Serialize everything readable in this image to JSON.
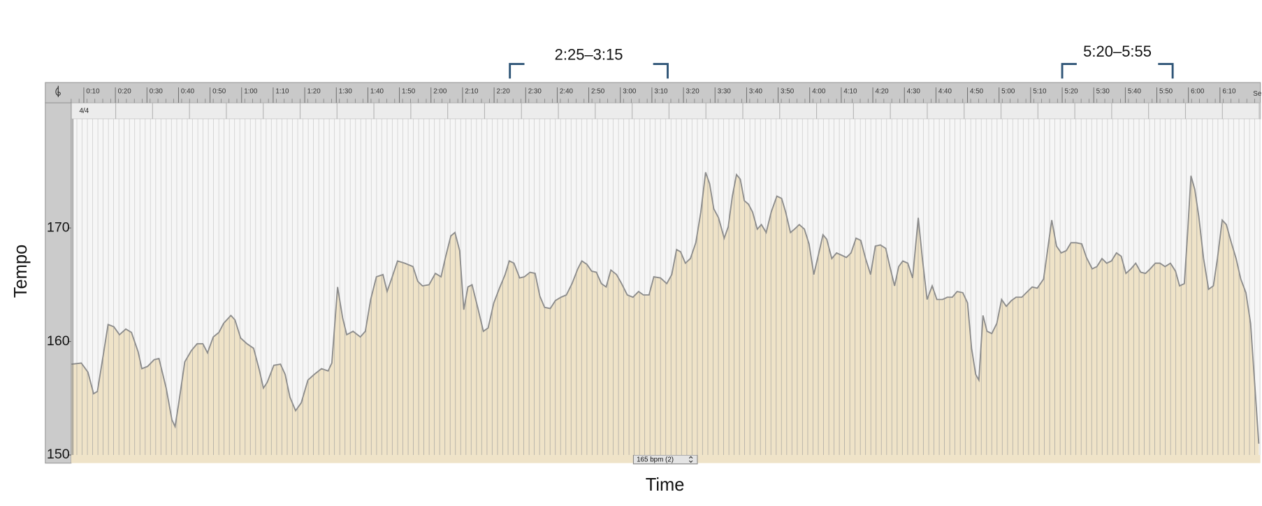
{
  "chart_data": {
    "type": "area",
    "x_label": "Time",
    "y_label": "Tempo",
    "x": [
      6.1,
      9.2,
      11.3,
      13.1,
      14.3,
      16.1,
      17.7,
      19.5,
      21.3,
      23.3,
      25.1,
      27.2,
      28.4,
      30.2,
      32.3,
      33.8,
      36.1,
      37.9,
      38.9,
      40.0,
      42.0,
      44.1,
      45.9,
      47.7,
      49.2,
      51.0,
      52.8,
      54.3,
      56.6,
      57.9,
      59.7,
      61.7,
      63.8,
      65.6,
      66.9,
      68.1,
      70.2,
      72.3,
      73.8,
      75.3,
      77.1,
      78.9,
      81.0,
      83.0,
      85.3,
      87.4,
      88.6,
      90.4,
      92.0,
      93.3,
      95.3,
      97.6,
      99.2,
      100.9,
      102.7,
      104.8,
      106.1,
      107.6,
      109.4,
      111.7,
      114.3,
      115.8,
      117.3,
      119.4,
      121.4,
      123.2,
      124.5,
      126.3,
      127.6,
      129.1,
      130.4,
      131.7,
      133.0,
      134.8,
      136.6,
      138.1,
      139.9,
      141.7,
      143.5,
      144.8,
      146.3,
      148.1,
      149.6,
      151.4,
      153.0,
      154.5,
      156.0,
      157.8,
      159.4,
      161.2,
      162.9,
      164.7,
      166.5,
      167.8,
      169.4,
      170.9,
      172.4,
      174.0,
      175.5,
      177.0,
      178.8,
      180.4,
      182.2,
      184.0,
      185.8,
      187.3,
      189.1,
      190.6,
      192.7,
      194.7,
      196.3,
      197.8,
      199.1,
      200.6,
      202.2,
      203.9,
      205.5,
      207.0,
      208.3,
      209.6,
      211.1,
      212.9,
      214.2,
      215.5,
      216.8,
      218.0,
      219.3,
      220.6,
      221.9,
      223.4,
      224.7,
      226.2,
      227.8,
      229.6,
      231.1,
      232.4,
      233.9,
      235.2,
      236.7,
      238.3,
      239.8,
      241.3,
      242.9,
      244.2,
      245.4,
      247.0,
      248.5,
      250.1,
      251.6,
      253.1,
      254.7,
      256.2,
      257.7,
      259.3,
      260.8,
      262.4,
      264.1,
      265.4,
      266.9,
      268.2,
      269.5,
      271.1,
      272.6,
      274.4,
      275.7,
      277.2,
      278.8,
      280.3,
      282.1,
      283.6,
      285.2,
      286.7,
      288.5,
      290.0,
      291.3,
      292.6,
      293.6,
      294.9,
      296.2,
      297.7,
      299.3,
      300.8,
      302.3,
      303.9,
      305.4,
      307.2,
      309.0,
      310.5,
      312.1,
      314.1,
      315.7,
      316.7,
      318.2,
      319.7,
      321.3,
      322.8,
      324.4,
      326.2,
      327.7,
      329.5,
      331.0,
      332.6,
      334.1,
      335.6,
      337.2,
      338.7,
      340.2,
      341.8,
      343.3,
      344.9,
      346.4,
      347.9,
      349.5,
      351.0,
      352.6,
      354.3,
      355.9,
      357.2,
      358.7,
      359.7,
      360.8,
      362.0,
      363.3,
      364.8,
      366.4,
      367.9,
      369.2,
      370.7,
      372.0,
      373.6,
      375.1,
      376.6,
      378.2,
      379.7,
      381.3,
      382.3
    ],
    "values": [
      158.0,
      158.1,
      157.3,
      155.4,
      155.6,
      158.7,
      161.5,
      161.3,
      160.6,
      161.1,
      160.8,
      159.1,
      157.6,
      157.8,
      158.4,
      158.5,
      155.9,
      153.1,
      152.5,
      154.4,
      158.2,
      159.2,
      159.8,
      159.8,
      159.0,
      160.4,
      160.8,
      161.6,
      162.3,
      161.9,
      160.3,
      159.8,
      159.4,
      157.5,
      155.9,
      156.4,
      157.9,
      158.0,
      157.1,
      155.1,
      153.9,
      154.6,
      156.6,
      157.1,
      157.6,
      157.4,
      158.1,
      164.8,
      162.1,
      160.6,
      160.9,
      160.4,
      160.9,
      163.7,
      165.7,
      165.9,
      164.4,
      165.6,
      167.1,
      166.9,
      166.6,
      165.3,
      164.9,
      165.0,
      166.0,
      165.7,
      167.3,
      169.3,
      169.6,
      168.0,
      162.8,
      164.8,
      165.0,
      163.0,
      160.9,
      161.2,
      163.4,
      164.7,
      165.9,
      167.1,
      166.9,
      165.6,
      165.7,
      166.1,
      166.0,
      164.0,
      163.0,
      162.9,
      163.6,
      163.9,
      164.1,
      165.1,
      166.4,
      167.1,
      166.8,
      166.2,
      166.1,
      165.1,
      164.8,
      166.3,
      165.9,
      165.1,
      164.1,
      163.9,
      164.4,
      164.1,
      164.1,
      165.7,
      165.6,
      165.1,
      165.9,
      168.1,
      167.9,
      166.9,
      167.3,
      168.7,
      171.4,
      174.9,
      173.9,
      171.7,
      170.9,
      169.1,
      170.1,
      172.8,
      174.7,
      174.3,
      172.4,
      172.1,
      171.4,
      169.9,
      170.3,
      169.6,
      171.4,
      172.8,
      172.6,
      171.4,
      169.6,
      169.9,
      170.3,
      169.9,
      168.6,
      165.9,
      167.8,
      169.4,
      169.0,
      167.3,
      167.8,
      167.6,
      167.4,
      167.8,
      169.1,
      168.9,
      167.3,
      165.9,
      168.4,
      168.5,
      168.2,
      166.6,
      164.9,
      166.6,
      167.1,
      166.9,
      165.6,
      170.9,
      167.3,
      163.7,
      164.9,
      163.7,
      163.7,
      163.9,
      163.9,
      164.4,
      164.3,
      163.4,
      159.4,
      157.1,
      156.6,
      162.3,
      160.9,
      160.7,
      161.6,
      163.7,
      163.1,
      163.6,
      163.9,
      163.9,
      164.4,
      164.8,
      164.7,
      165.5,
      168.7,
      170.7,
      168.4,
      167.8,
      168.0,
      168.7,
      168.7,
      168.6,
      167.4,
      166.4,
      166.6,
      167.3,
      166.9,
      167.1,
      167.8,
      167.5,
      166.0,
      166.4,
      166.9,
      166.1,
      166.0,
      166.4,
      166.9,
      166.9,
      166.6,
      166.9,
      166.2,
      164.9,
      165.1,
      169.4,
      174.6,
      173.4,
      171.0,
      167.3,
      164.6,
      164.9,
      167.3,
      170.7,
      170.3,
      168.7,
      167.3,
      165.5,
      164.3,
      161.6,
      155.1,
      151.0
    ],
    "color": "#efe3c8",
    "line_color": "#8c8c8c",
    "xlim": [
      6,
      382.8
    ],
    "ylim": [
      150,
      179.6
    ],
    "xticks": [
      {
        "value": 10,
        "label": "0:10"
      },
      {
        "value": 20,
        "label": "0:20"
      },
      {
        "value": 30,
        "label": "0:30"
      },
      {
        "value": 40,
        "label": "0:40"
      },
      {
        "value": 50,
        "label": "0:50"
      },
      {
        "value": 60,
        "label": "1:00"
      },
      {
        "value": 70,
        "label": "1:10"
      },
      {
        "value": 80,
        "label": "1:20"
      },
      {
        "value": 90,
        "label": "1:30"
      },
      {
        "value": 100,
        "label": "1:40"
      },
      {
        "value": 110,
        "label": "1:50"
      },
      {
        "value": 120,
        "label": "2:00"
      },
      {
        "value": 130,
        "label": "2:10"
      },
      {
        "value": 140,
        "label": "2:20"
      },
      {
        "value": 150,
        "label": "2:30"
      },
      {
        "value": 160,
        "label": "2:40"
      },
      {
        "value": 170,
        "label": "2:50"
      },
      {
        "value": 180,
        "label": "3:00"
      },
      {
        "value": 190,
        "label": "3:10"
      },
      {
        "value": 200,
        "label": "3:20"
      },
      {
        "value": 210,
        "label": "3:30"
      },
      {
        "value": 220,
        "label": "3:40"
      },
      {
        "value": 230,
        "label": "3:50"
      },
      {
        "value": 240,
        "label": "4:00"
      },
      {
        "value": 250,
        "label": "4:10"
      },
      {
        "value": 260,
        "label": "4:20"
      },
      {
        "value": 270,
        "label": "4:30"
      },
      {
        "value": 280,
        "label": "4:40"
      },
      {
        "value": 290,
        "label": "4:50"
      },
      {
        "value": 300,
        "label": "5:00"
      },
      {
        "value": 310,
        "label": "5:10"
      },
      {
        "value": 320,
        "label": "5:20"
      },
      {
        "value": 330,
        "label": "5:30"
      },
      {
        "value": 340,
        "label": "5:40"
      },
      {
        "value": 350,
        "label": "5:50"
      },
      {
        "value": 360,
        "label": "6:00"
      },
      {
        "value": 370,
        "label": "6:10"
      }
    ],
    "yticks": [
      150,
      160,
      170
    ],
    "annotations": [
      {
        "label": "2:25–3:15",
        "start": 145,
        "end": 195
      },
      {
        "label": "5:20–5:55",
        "start": 320,
        "end": 355
      }
    ],
    "ruler_text": "Se",
    "time_signature": "4/4",
    "tempo_field": "165 bpm (2)"
  }
}
